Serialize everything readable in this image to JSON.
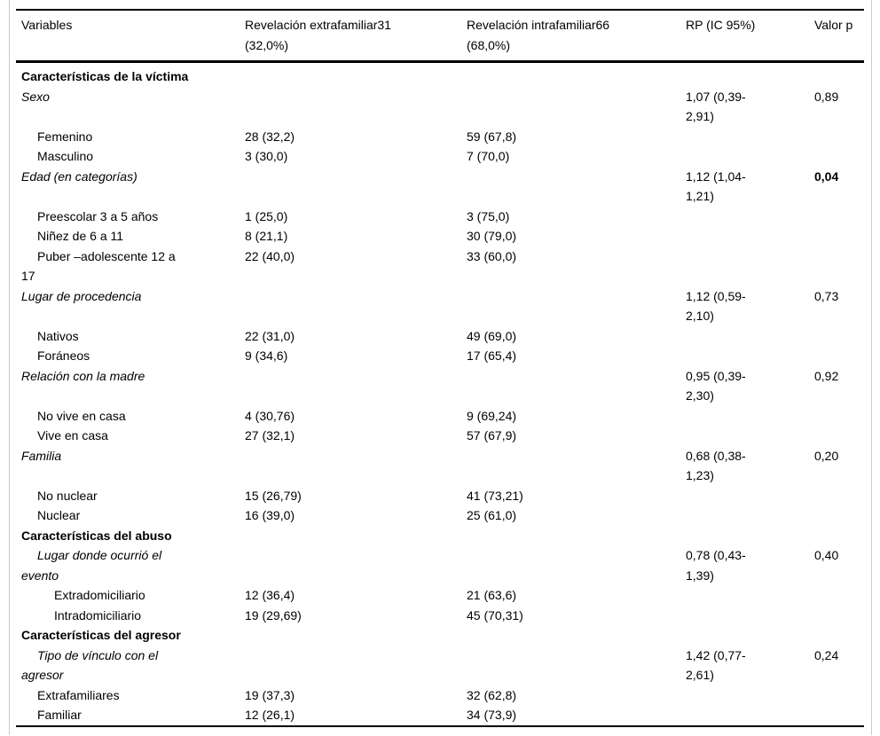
{
  "table": {
    "columns": [
      {
        "label": "Variables"
      },
      {
        "label": "Revelación extrafamiliar31\n(32,0%)"
      },
      {
        "label": "Revelación intrafamiliar66\n(68,0%)"
      },
      {
        "label": "RP (IC 95%)"
      },
      {
        "label": "Valor p"
      }
    ],
    "rows": [
      {
        "style": "section",
        "label": "Características de la víctima",
        "extra": "",
        "intra": "",
        "rp": "",
        "p": ""
      },
      {
        "style": "variable",
        "label": "Sexo",
        "extra": "",
        "intra": "",
        "rp": "1,07 (0,39-2,91)",
        "p": "0,89"
      },
      {
        "style": "item",
        "label": "Femenino",
        "extra": "28 (32,2)",
        "intra": "59 (67,8)",
        "rp": "",
        "p": ""
      },
      {
        "style": "item",
        "label": "Masculino",
        "extra": "3 (30,0)",
        "intra": "7 (70,0)",
        "rp": "",
        "p": ""
      },
      {
        "style": "variable",
        "label": "Edad (en categorías)",
        "extra": "",
        "intra": "",
        "rp": "1,12 (1,04-1,21)",
        "p": "0,04",
        "p_bold": true
      },
      {
        "style": "item",
        "label": "Preescolar 3 a 5 años",
        "extra": "1 (25,0)",
        "intra": "3 (75,0)",
        "rp": "",
        "p": ""
      },
      {
        "style": "item",
        "label": "Niñez de 6 a 11",
        "extra": "8 (21,1)",
        "intra": "30 (79,0)",
        "rp": "",
        "p": ""
      },
      {
        "style": "item",
        "label": "Puber –adolescente 12 a\n17",
        "extra": "22 (40,0)",
        "intra": "33 (60,0)",
        "rp": "",
        "p": ""
      },
      {
        "style": "variable",
        "label": "Lugar de procedencia",
        "extra": "",
        "intra": "",
        "rp": "1,12 (0,59-2,10)",
        "p": "0,73"
      },
      {
        "style": "item",
        "label": "Nativos",
        "extra": "22 (31,0)",
        "intra": "49 (69,0)",
        "rp": "",
        "p": ""
      },
      {
        "style": "item",
        "label": "Foráneos",
        "extra": "9 (34,6)",
        "intra": "17 (65,4)",
        "rp": "",
        "p": ""
      },
      {
        "style": "variable",
        "label": "Relación con la madre",
        "extra": "",
        "intra": "",
        "rp": "0,95 (0,39-2,30)",
        "p": "0,92"
      },
      {
        "style": "item",
        "label": "No vive en casa",
        "extra": "4 (30,76)",
        "intra": "9 (69,24)",
        "rp": "",
        "p": ""
      },
      {
        "style": "item",
        "label": "Vive en casa",
        "extra": "27 (32,1)",
        "intra": "57 (67,9)",
        "rp": "",
        "p": ""
      },
      {
        "style": "variable",
        "label": "Familia",
        "extra": "",
        "intra": "",
        "rp": "0,68 (0,38-1,23)",
        "p": "0,20"
      },
      {
        "style": "item",
        "label": "No nuclear",
        "extra": "15 (26,79)",
        "intra": "41 (73,21)",
        "rp": "",
        "p": ""
      },
      {
        "style": "item",
        "label": "Nuclear",
        "extra": "16 (39,0)",
        "intra": "25 (61,0)",
        "rp": "",
        "p": ""
      },
      {
        "style": "section",
        "label": "Características del abuso",
        "extra": "",
        "intra": "",
        "rp": "",
        "p": ""
      },
      {
        "style": "variable-indent",
        "label": "Lugar donde ocurrió el\nevento",
        "extra": "",
        "intra": "",
        "rp": "0,78 (0,43-1,39)",
        "p": "0,40"
      },
      {
        "style": "item2",
        "label": "Extradomiciliario",
        "extra": "12 (36,4)",
        "intra": "21 (63,6)",
        "rp": "",
        "p": ""
      },
      {
        "style": "item2",
        "label": "Intradomiciliario",
        "extra": "19 (29,69)",
        "intra": "45 (70,31)",
        "rp": "",
        "p": ""
      },
      {
        "style": "section",
        "label": "Características del agresor",
        "extra": "",
        "intra": "",
        "rp": "",
        "p": ""
      },
      {
        "style": "variable-indent",
        "label": "Tipo de vínculo con el\nagresor",
        "extra": "",
        "intra": "",
        "rp": "1,42 (0,77-2,61)",
        "p": "0,24"
      },
      {
        "style": "item",
        "label": "Extrafamiliares",
        "extra": "19 (37,3)",
        "intra": "32 (62,8)",
        "rp": "",
        "p": ""
      },
      {
        "style": "item",
        "label": "Familiar",
        "extra": "12 (26,1)",
        "intra": "34 (73,9)",
        "rp": "",
        "p": ""
      }
    ]
  }
}
